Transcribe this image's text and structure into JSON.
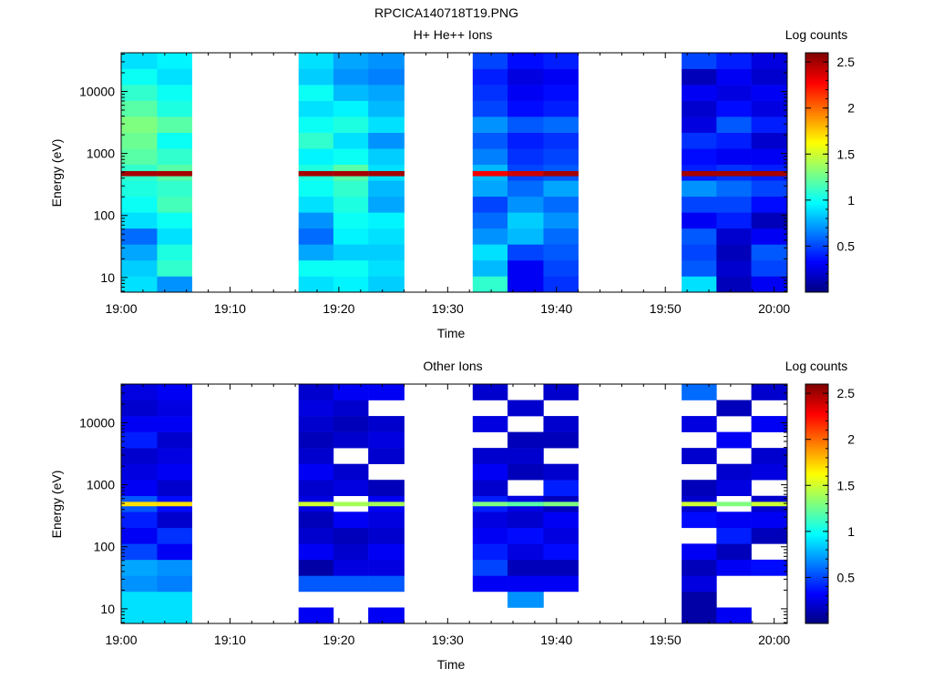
{
  "page_title": "RPCICA140718T19.PNG",
  "colors": {
    "colormap": [
      "#00007f",
      "#0000ff",
      "#007fff",
      "#00ffff",
      "#7fff7f",
      "#ffff00",
      "#ff7f00",
      "#ff0000",
      "#7f0000"
    ],
    "background": "#ffffff",
    "axis": "#000000"
  },
  "chart_data": [
    {
      "type": "heatmap",
      "title": "H+ He++ Ions",
      "xlabel": "Time",
      "ylabel": "Energy (eV)",
      "colorbar_label": "Log counts",
      "colorbar_ticks": [
        "0.5",
        "1",
        "1.5",
        "2",
        "2.5"
      ],
      "colorbar_range": [
        0.0,
        2.6
      ],
      "x_tick_labels": [
        "19:00",
        "19:10",
        "19:20",
        "19:30",
        "19:40",
        "19:50",
        "20:00"
      ],
      "x_tick_minutes": [
        0,
        10,
        20,
        30,
        40,
        50,
        60
      ],
      "xlim_minutes": [
        0,
        61.2
      ],
      "y_tick_labels": [
        "10",
        "100",
        "1000",
        "10000"
      ],
      "y_tick_values": [
        10,
        100,
        1000,
        10000
      ],
      "ylim": [
        5.8,
        42000
      ],
      "y_scale": "log",
      "grid": false,
      "colorbar_position": "right",
      "bins": [
        {
          "t": [
            0,
            3.3
          ],
          "levels": [
            0.9,
            0.85,
            0.75,
            0.6,
            0.9,
            1.0,
            1.05,
            1.1,
            1.2,
            1.25,
            1.3,
            1.2,
            1.1,
            1.0,
            0.9
          ]
        },
        {
          "t": [
            3.3,
            6.5
          ],
          "levels": [
            0.7,
            1.1,
            1.05,
            0.9,
            1.0,
            1.15,
            1.1,
            1.2,
            1.1,
            1.0,
            1.2,
            1.05,
            1.0,
            0.9,
            0.95
          ]
        },
        {
          "t": [
            16.3,
            19.5
          ],
          "levels": [
            0.9,
            1.0,
            0.75,
            0.6,
            0.7,
            0.9,
            1.0,
            1.05,
            0.95,
            1.1,
            1.0,
            0.9,
            1.0,
            0.85,
            0.9
          ]
        },
        {
          "t": [
            19.5,
            22.7
          ],
          "levels": [
            0.95,
            1.0,
            0.85,
            0.95,
            1.0,
            1.05,
            1.1,
            1.2,
            1.0,
            0.9,
            1.05,
            0.95,
            0.8,
            0.7,
            0.75
          ]
        },
        {
          "t": [
            22.7,
            26.0
          ],
          "levels": [
            0.85,
            0.9,
            0.85,
            0.9,
            0.95,
            0.75,
            0.8,
            0.9,
            0.85,
            0.7,
            0.9,
            0.8,
            0.75,
            0.65,
            0.7
          ]
        },
        {
          "t": [
            32.3,
            35.5
          ],
          "levels": [
            1.1,
            0.8,
            0.9,
            0.7,
            0.6,
            0.5,
            0.75,
            0.8,
            0.65,
            0.55,
            0.7,
            0.5,
            0.45,
            0.4,
            0.5
          ]
        },
        {
          "t": [
            35.5,
            38.8
          ],
          "levels": [
            0.3,
            0.3,
            0.5,
            0.8,
            0.85,
            0.7,
            0.6,
            0.5,
            0.45,
            0.4,
            0.55,
            0.35,
            0.3,
            0.25,
            0.35
          ]
        },
        {
          "t": [
            38.8,
            42.0
          ],
          "levels": [
            0.45,
            0.5,
            0.55,
            0.6,
            0.7,
            0.6,
            0.75,
            0.55,
            0.5,
            0.45,
            0.6,
            0.4,
            0.35,
            0.3,
            0.4
          ]
        },
        {
          "t": [
            51.5,
            54.7
          ],
          "levels": [
            0.9,
            0.55,
            0.5,
            0.55,
            0.3,
            0.5,
            0.7,
            0.4,
            0.35,
            0.45,
            0.25,
            0.2,
            0.3,
            0.15,
            0.5
          ]
        },
        {
          "t": [
            54.7,
            57.9
          ],
          "levels": [
            0.15,
            0.2,
            0.15,
            0.2,
            0.4,
            0.5,
            0.6,
            0.45,
            0.3,
            0.4,
            0.55,
            0.35,
            0.25,
            0.3,
            0.4
          ]
        },
        {
          "t": [
            57.9,
            61.2
          ],
          "levels": [
            0.3,
            0.5,
            0.55,
            0.3,
            0.15,
            0.35,
            0.5,
            0.4,
            0.3,
            0.2,
            0.4,
            0.25,
            0.3,
            0.2,
            0.25
          ]
        }
      ],
      "band": {
        "energy": [
          430,
          520
        ],
        "levels": [
          2.5,
          2.5,
          2.5,
          2.5,
          2.5,
          2.3,
          2.4,
          2.5,
          2.5,
          2.5,
          2.5
        ]
      }
    },
    {
      "type": "heatmap",
      "title": "Other Ions",
      "xlabel": "Time",
      "ylabel": "Energy (eV)",
      "colorbar_label": "Log counts",
      "colorbar_ticks": [
        "0.5",
        "1",
        "1.5",
        "2",
        "2.5"
      ],
      "colorbar_range": [
        0.0,
        2.6
      ],
      "x_tick_labels": [
        "19:00",
        "19:10",
        "19:20",
        "19:30",
        "19:40",
        "19:50",
        "20:00"
      ],
      "x_tick_minutes": [
        0,
        10,
        20,
        30,
        40,
        50,
        60
      ],
      "xlim_minutes": [
        0,
        61.2
      ],
      "y_tick_labels": [
        "10",
        "100",
        "1000",
        "10000"
      ],
      "y_tick_values": [
        10,
        100,
        1000,
        10000
      ],
      "ylim": [
        5.8,
        42000
      ],
      "y_scale": "log",
      "grid": false,
      "colorbar_position": "right",
      "bins": [
        {
          "t": [
            0,
            3.3
          ],
          "levels": [
            0.9,
            0.9,
            0.7,
            0.75,
            0.5,
            0.3,
            0.4,
            0.55,
            0.3,
            0.25,
            0.2,
            0.4,
            0.3,
            0.2,
            0.25
          ]
        },
        {
          "t": [
            3.3,
            6.5
          ],
          "levels": [
            0.9,
            0.9,
            0.65,
            0.7,
            0.3,
            0.45,
            0.2,
            0.35,
            0.2,
            0.3,
            0.25,
            0.2,
            0.3,
            0.25,
            0.3
          ]
        },
        {
          "t": [
            16.3,
            19.5
          ],
          "levels": [
            0.3,
            -1,
            0.55,
            0.1,
            0.3,
            0.2,
            0.15,
            0.25,
            0.2,
            0.3,
            0.2,
            0.15,
            0.2,
            0.25,
            0.2
          ]
        },
        {
          "t": [
            19.5,
            22.7
          ],
          "levels": [
            -1,
            -1,
            0.55,
            0.25,
            0.2,
            0.15,
            0.3,
            -1,
            0.25,
            0.2,
            -1,
            0.2,
            0.15,
            0.2,
            0.3
          ]
        },
        {
          "t": [
            22.7,
            26.0
          ],
          "levels": [
            0.3,
            -1,
            0.55,
            0.25,
            0.3,
            0.2,
            0.25,
            0.3,
            0.15,
            -1,
            0.2,
            0.25,
            0.2,
            -1,
            0.3
          ]
        },
        {
          "t": [
            32.3,
            35.5
          ],
          "levels": [
            -1,
            -1,
            0.3,
            0.5,
            0.4,
            0.3,
            0.25,
            0.4,
            0.2,
            0.3,
            0.2,
            -1,
            0.25,
            -1,
            0.2
          ]
        },
        {
          "t": [
            35.5,
            38.8
          ],
          "levels": [
            -1,
            0.7,
            0.3,
            0.15,
            0.25,
            0.35,
            0.2,
            0.25,
            -1,
            0.15,
            0.2,
            0.15,
            -1,
            0.2,
            -1
          ]
        },
        {
          "t": [
            38.8,
            42.0
          ],
          "levels": [
            -1,
            -1,
            0.3,
            0.15,
            0.35,
            0.25,
            0.3,
            0.15,
            0.4,
            0.2,
            -1,
            0.15,
            0.2,
            -1,
            0.2
          ]
        },
        {
          "t": [
            51.5,
            54.7
          ],
          "levels": [
            0.1,
            0.1,
            0.25,
            0.15,
            0.3,
            -1,
            0.35,
            0.2,
            0.15,
            -1,
            0.2,
            -1,
            0.25,
            -1,
            0.6
          ]
        },
        {
          "t": [
            54.7,
            57.9
          ],
          "levels": [
            0.3,
            -1,
            -1,
            0.3,
            0.15,
            0.4,
            0.3,
            -1,
            0.25,
            0.2,
            -1,
            0.3,
            -1,
            0.15,
            -1
          ]
        },
        {
          "t": [
            57.9,
            61.2
          ],
          "levels": [
            -1,
            -1,
            -1,
            0.35,
            -1,
            0.15,
            0.3,
            0.2,
            -1,
            0.25,
            0.2,
            -1,
            0.3,
            -1,
            0.2
          ]
        }
      ],
      "band": {
        "energy": [
          450,
          530
        ],
        "levels": [
          1.7,
          1.7,
          1.5,
          1.4,
          1.4,
          1.3,
          1.2,
          1.3,
          1.5,
          1.3,
          1.5
        ]
      }
    }
  ]
}
